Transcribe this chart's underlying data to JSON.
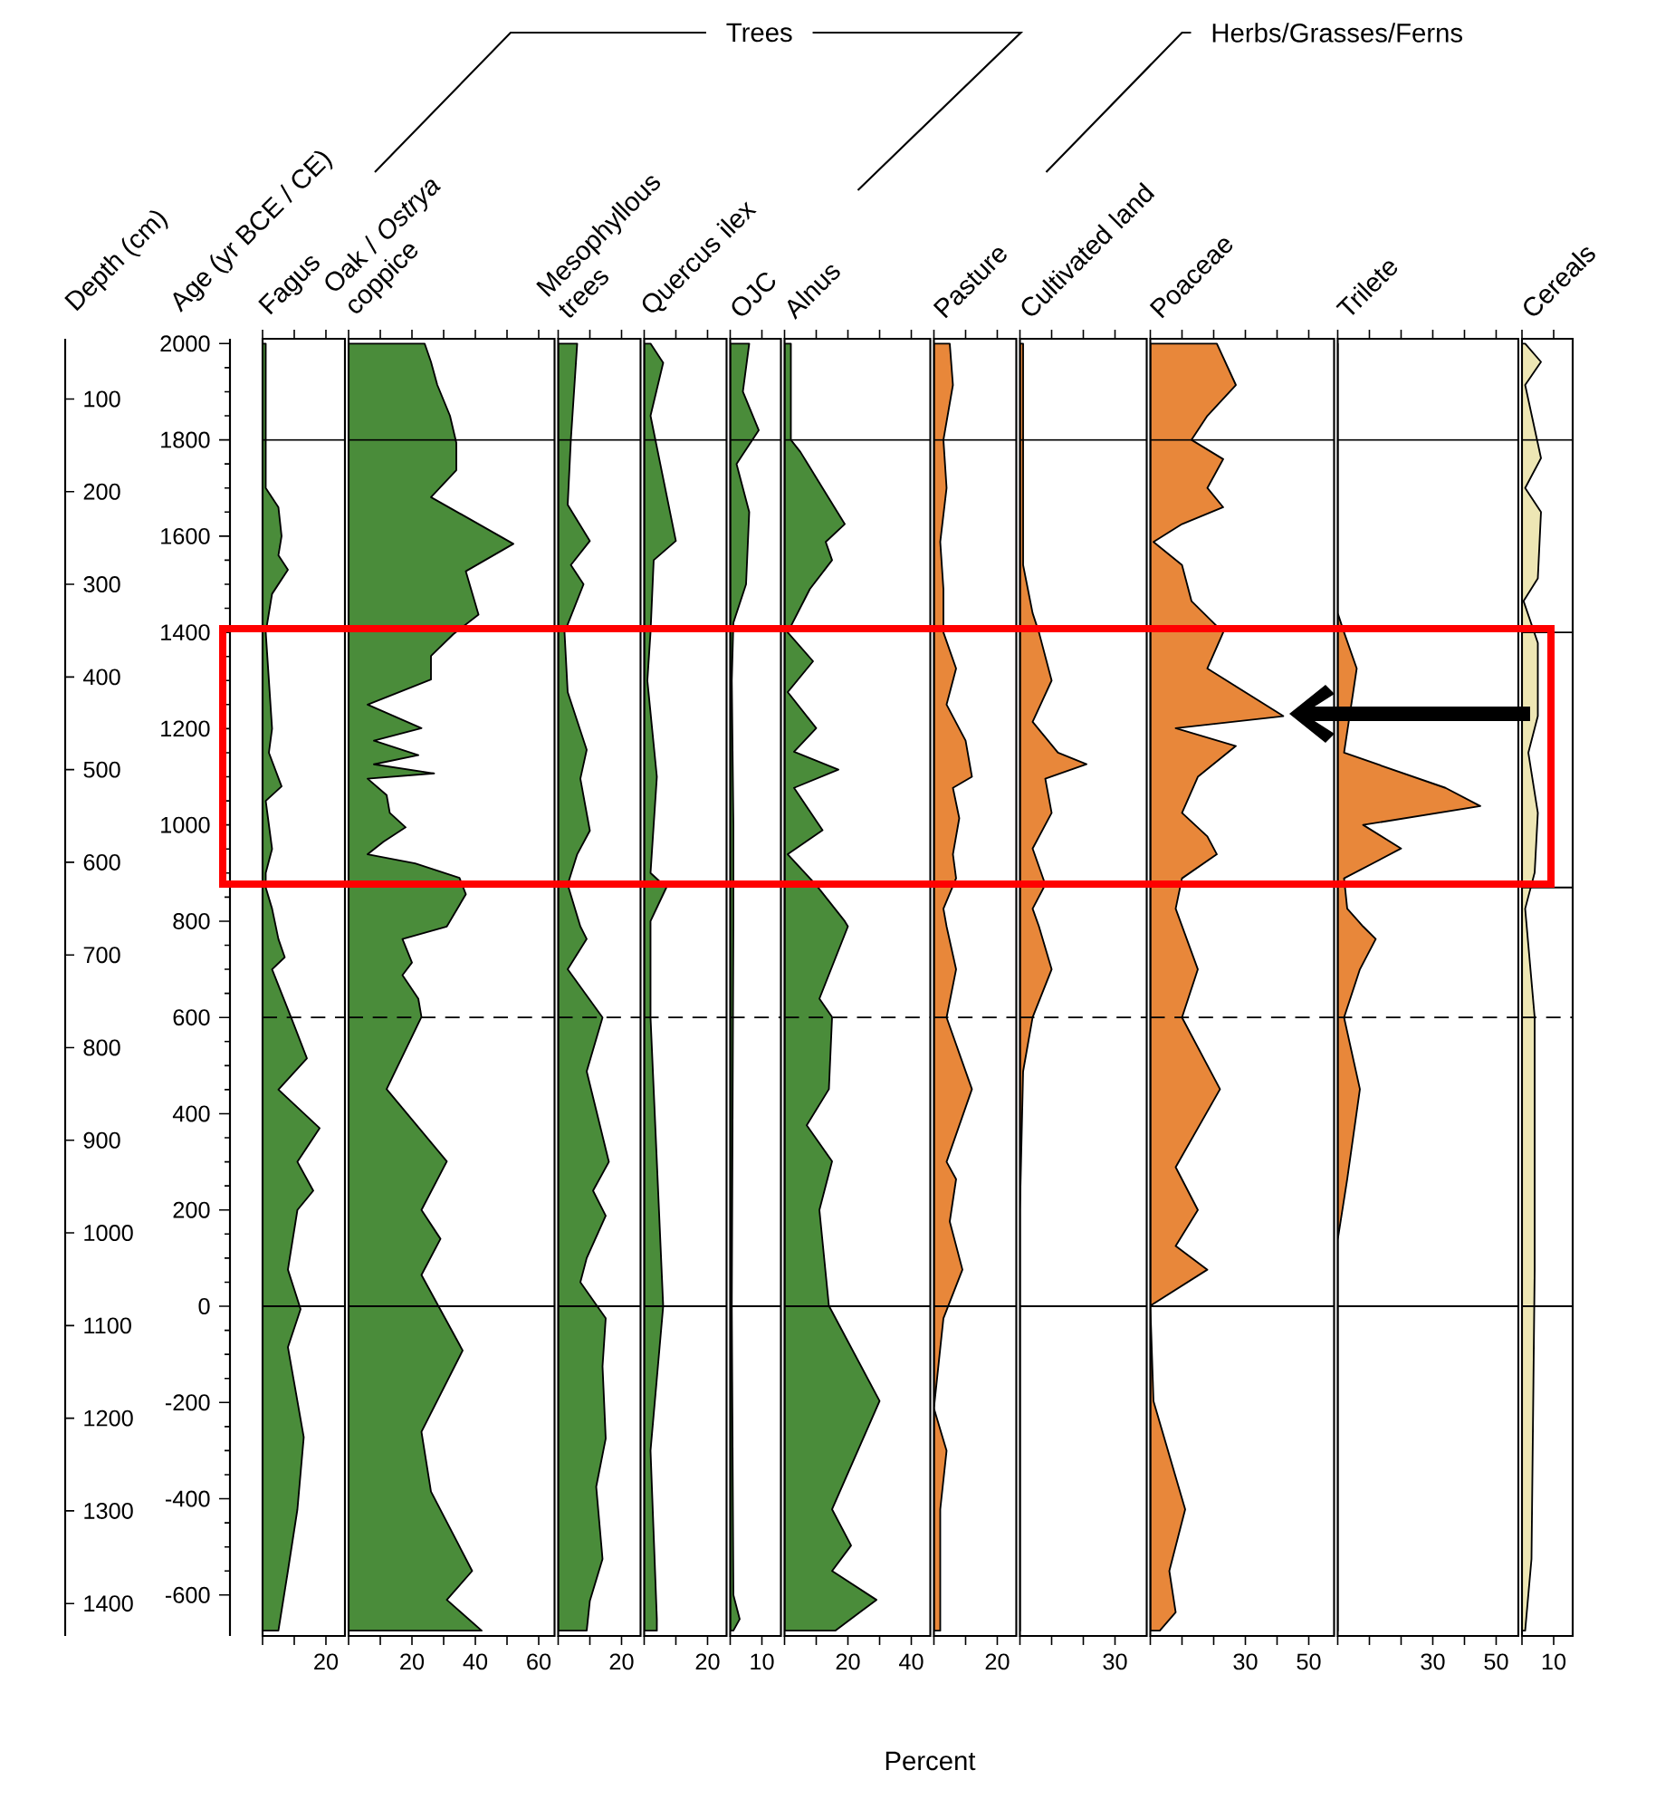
{
  "chart_data": [
    {
      "type": "area",
      "orientation": "horizontal",
      "title": "Fagus",
      "ylabel": "Age (yr BCE / CE)",
      "y2label": "Depth (cm)",
      "annotations": [
        "Trees"
      ],
      "xlim": [
        0,
        26
      ],
      "xticks": [
        {
          "value": 0,
          "label": null
        },
        {
          "value": 10,
          "label": null
        },
        20
      ],
      "ylim": [
        -685,
        2010
      ],
      "yticks": [
        -600,
        -400,
        -200,
        0,
        200,
        400,
        600,
        800,
        1000,
        1200,
        1400,
        1600,
        1800,
        2000
      ],
      "y2lim": [
        1435,
        35
      ],
      "y2ticks": [
        100,
        200,
        300,
        400,
        500,
        600,
        700,
        800,
        900,
        1000,
        1100,
        1200,
        1300,
        1400
      ],
      "ref_lines": [
        {
          "axis": "y",
          "value": 1800
        },
        {
          "axis": "y",
          "value": 600,
          "line_style": "dashed"
        },
        {
          "axis": "y",
          "value": 0
        }
      ],
      "series": [
        {
          "color": "#4a8c3a",
          "x": [
            2000,
            1800,
            1700,
            1660,
            1600,
            1560,
            1530,
            1480,
            1400,
            1300,
            1200,
            1150,
            1080,
            1050,
            1000,
            950,
            900,
            870,
            826,
            763,
            725,
            700,
            600,
            515,
            450,
            370,
            300,
            240,
            200,
            76,
            -6,
            -85,
            -272,
            -422,
            -550,
            -674
          ],
          "values": [
            1,
            1,
            1,
            5,
            6,
            5,
            8,
            3,
            1,
            2,
            3,
            2,
            6,
            1,
            2,
            3,
            1,
            1,
            3,
            5,
            7,
            3,
            9,
            14,
            5,
            18,
            11,
            16,
            11,
            8,
            12,
            8,
            13,
            11,
            8,
            5
          ]
        }
      ]
    },
    {
      "type": "area",
      "orientation": "horizontal",
      "title": "Oak / *Ostrya* coppice",
      "tick_labels": "x",
      "xlim": [
        0,
        65
      ],
      "xticks": [
        {
          "value": 0,
          "label": null
        },
        {
          "value": 10,
          "label": null
        },
        20,
        {
          "value": 30,
          "label": null
        },
        40,
        {
          "value": 50,
          "label": null
        },
        60
      ],
      "ylim": [
        -685,
        2010
      ],
      "ref_lines": [
        {
          "axis": "y",
          "value": 1800
        },
        {
          "axis": "y",
          "value": 600,
          "line_style": "dashed"
        },
        {
          "axis": "y",
          "value": 0
        }
      ],
      "series": [
        {
          "color": "#4a8c3a",
          "x": [
            2000,
            1962,
            1914,
            1850,
            1794,
            1737,
            1681,
            1584,
            1527,
            1437,
            1396,
            1351,
            1302,
            1250,
            1201,
            1175,
            1145,
            1126,
            1107,
            1096,
            1062,
            1025,
            995,
            965,
            939,
            920,
            890,
            856,
            789,
            763,
            714,
            688,
            639,
            601,
            451,
            301,
            200,
            140,
            65,
            -92,
            -261,
            -385,
            -550,
            -610,
            -674
          ],
          "values": [
            24,
            26,
            28,
            32,
            34,
            34,
            26,
            52,
            37,
            41,
            33,
            26,
            26,
            6,
            23,
            8,
            22,
            8,
            27,
            6,
            12,
            13,
            18,
            11,
            6,
            21,
            35,
            37,
            31,
            17,
            20,
            17,
            22,
            23,
            12,
            31,
            23,
            29,
            23,
            36,
            23,
            26,
            39,
            31,
            42
          ]
        }
      ]
    },
    {
      "type": "area",
      "orientation": "horizontal",
      "title": "Mesophyllous trees",
      "tick_labels": "x",
      "xlim": [
        0,
        26
      ],
      "xticks": [
        {
          "value": 0,
          "label": null
        },
        {
          "value": 10,
          "label": null
        },
        20
      ],
      "ylim": [
        -685,
        2010
      ],
      "ref_lines": [
        {
          "axis": "y",
          "value": 1800
        },
        {
          "axis": "y",
          "value": 600,
          "line_style": "dashed"
        },
        {
          "axis": "y",
          "value": 0
        }
      ],
      "series": [
        {
          "color": "#4a8c3a",
          "x": [
            2000,
            1800,
            1665,
            1590,
            1540,
            1500,
            1400,
            1276,
            1156,
            1096,
            988,
            939,
            876,
            789,
            763,
            700,
            600,
            488,
            300,
            240,
            188,
            100,
            50,
            -25,
            -125,
            -275,
            -375,
            -525,
            -612,
            -674
          ],
          "values": [
            6,
            4,
            3,
            10,
            4,
            8,
            2,
            3,
            9,
            7,
            10,
            6,
            3,
            7,
            9,
            3,
            14,
            9,
            16,
            11,
            15,
            9,
            7,
            15,
            14,
            15,
            12,
            14,
            10,
            9
          ]
        }
      ]
    },
    {
      "type": "area",
      "orientation": "horizontal",
      "title": "Quercus ilex",
      "tick_labels": "x",
      "xlim": [
        0,
        26
      ],
      "xticks": [
        {
          "value": 0,
          "label": null
        },
        {
          "value": 10,
          "label": null
        },
        20
      ],
      "ylim": [
        -685,
        2010
      ],
      "ref_lines": [
        {
          "axis": "y",
          "value": 1800
        },
        {
          "axis": "y",
          "value": 600,
          "line_style": "dashed"
        },
        {
          "axis": "y",
          "value": 0
        }
      ],
      "series": [
        {
          "color": "#4a8c3a",
          "x": [
            2000,
            1960,
            1850,
            1590,
            1550,
            1400,
            1300,
            1100,
            900,
            870,
            800,
            600,
            0,
            -300,
            -650,
            -674
          ],
          "values": [
            2,
            6,
            2,
            10,
            3,
            2,
            1,
            4,
            2,
            7,
            2,
            2,
            6,
            2,
            4,
            4
          ]
        }
      ]
    },
    {
      "type": "area",
      "orientation": "horizontal",
      "title": "OJC",
      "tick_labels": "x",
      "xlim": [
        0,
        16
      ],
      "xticks": [
        {
          "value": 0,
          "label": null
        },
        10
      ],
      "ylim": [
        -685,
        2010
      ],
      "ref_lines": [
        {
          "axis": "y",
          "value": 1800
        },
        {
          "axis": "y",
          "value": 600,
          "line_style": "dashed"
        },
        {
          "axis": "y",
          "value": 0
        }
      ],
      "series": [
        {
          "color": "#4a8c3a",
          "x": [
            2000,
            1900,
            1820,
            1750,
            1650,
            1500,
            1420,
            1300,
            1000,
            800,
            0,
            -600,
            -650,
            -674
          ],
          "values": [
            6,
            4,
            9,
            2,
            6,
            5,
            1,
            0.5,
            1,
            1,
            0.5,
            1,
            3,
            1
          ]
        }
      ]
    },
    {
      "type": "area",
      "orientation": "horizontal",
      "title": "Alnus",
      "xlabel": "Percent",
      "tick_labels": "x",
      "xlim": [
        0,
        46
      ],
      "xticks": [
        {
          "value": 0,
          "label": null
        },
        {
          "value": 10,
          "label": null
        },
        20,
        {
          "value": 30,
          "label": null
        },
        40
      ],
      "ylim": [
        -685,
        2010
      ],
      "ref_lines": [
        {
          "axis": "y",
          "value": 1800
        },
        {
          "axis": "y",
          "value": 600,
          "line_style": "dashed"
        },
        {
          "axis": "y",
          "value": 0
        }
      ],
      "series": [
        {
          "color": "#4a8c3a",
          "x": [
            2000,
            1800,
            1775,
            1700,
            1625,
            1588,
            1550,
            1490,
            1400,
            1340,
            1276,
            1201,
            1152,
            1115,
            1077,
            989,
            939,
            875,
            800,
            789,
            639,
            601,
            451,
            376,
            301,
            200,
            1,
            -197,
            -422,
            -497,
            -550,
            -610,
            -674
          ],
          "values": [
            2,
            2,
            5,
            12,
            19,
            13,
            15,
            8,
            1,
            9,
            1,
            10,
            3,
            17,
            3,
            12,
            1,
            10,
            19,
            20,
            11,
            15,
            14,
            7,
            15,
            11,
            14,
            30,
            15,
            21,
            15,
            29,
            16
          ]
        }
      ]
    },
    {
      "type": "area",
      "orientation": "horizontal",
      "title": "Pasture",
      "annotations": [
        "Herbs/Grasses/Ferns"
      ],
      "tick_labels": "x",
      "xlim": [
        0,
        26
      ],
      "xticks": [
        {
          "value": 0,
          "label": null
        },
        {
          "value": 10,
          "label": null
        },
        20
      ],
      "ylim": [
        -685,
        2010
      ],
      "ref_lines": [
        {
          "axis": "y",
          "value": 1800
        },
        {
          "axis": "y",
          "value": 600,
          "line_style": "dashed"
        },
        {
          "axis": "y",
          "value": 0
        }
      ],
      "series": [
        {
          "color": "#e8873a",
          "x": [
            2000,
            1914,
            1800,
            1700,
            1588,
            1490,
            1400,
            1325,
            1250,
            1175,
            1100,
            1077,
            1014,
            939,
            889,
            826,
            789,
            700,
            600,
            451,
            300,
            264,
            176,
            76,
            -25,
            -212,
            -300,
            -422,
            -674
          ],
          "values": [
            5,
            6,
            3,
            4,
            2,
            3,
            3,
            7,
            4,
            10,
            12,
            6,
            8,
            6,
            7,
            3,
            4,
            7,
            4,
            12,
            4,
            7,
            5,
            9,
            3,
            0,
            4,
            2,
            2
          ]
        }
      ]
    },
    {
      "type": "area",
      "orientation": "horizontal",
      "title": "Cultivated land",
      "tick_labels": "x",
      "xlim": [
        0,
        40
      ],
      "xticks": [
        {
          "value": 0,
          "label": null
        },
        {
          "value": 10,
          "label": null
        },
        {
          "value": 20,
          "label": null
        },
        30
      ],
      "ylim": [
        -685,
        2010
      ],
      "ref_lines": [
        {
          "axis": "y",
          "value": 1800
        },
        {
          "axis": "y",
          "value": 600,
          "line_style": "dashed"
        },
        {
          "axis": "y",
          "value": 0
        }
      ],
      "series": [
        {
          "color": "#e8873a",
          "x": [
            2000,
            1540,
            1440,
            1400,
            1300,
            1214,
            1150,
            1126,
            1096,
            1025,
            951,
            876,
            826,
            789,
            700,
            600,
            488,
            200,
            -674
          ],
          "values": [
            1,
            1,
            4,
            6,
            10,
            4,
            12,
            21,
            8,
            10,
            4,
            8,
            4,
            6,
            10,
            4,
            1,
            0,
            0
          ]
        }
      ]
    },
    {
      "type": "area",
      "orientation": "horizontal",
      "title": "Poaceae",
      "tick_labels": "x",
      "xlim": [
        0,
        58
      ],
      "xticks": [
        {
          "value": 0,
          "label": null
        },
        {
          "value": 10,
          "label": null
        },
        {
          "value": 20,
          "label": null
        },
        30,
        {
          "value": 40,
          "label": null
        },
        50
      ],
      "ylim": [
        -685,
        2010
      ],
      "ref_lines": [
        {
          "axis": "y",
          "value": 1800
        },
        {
          "axis": "y",
          "value": 600,
          "line_style": "dashed"
        },
        {
          "axis": "y",
          "value": 0
        }
      ],
      "series": [
        {
          "color": "#e8873a",
          "x": [
            2000,
            1914,
            1850,
            1800,
            1760,
            1700,
            1660,
            1625,
            1588,
            1540,
            1465,
            1400,
            1325,
            1226,
            1201,
            1164,
            1100,
            1025,
            976,
            939,
            889,
            826,
            700,
            600,
            451,
            289,
            200,
            125,
            76,
            1,
            -197,
            -422,
            -550,
            -636,
            -674
          ],
          "values": [
            21,
            27,
            18,
            13,
            23,
            18,
            23,
            10,
            1,
            10,
            13,
            23,
            18,
            42,
            8,
            27,
            15,
            10,
            18,
            21,
            10,
            8,
            15,
            10,
            22,
            8,
            15,
            8,
            18,
            0,
            1,
            11,
            6,
            8,
            3
          ]
        }
      ]
    },
    {
      "type": "area",
      "orientation": "horizontal",
      "title": "Trilete",
      "tick_labels": "x",
      "xlim": [
        0,
        57
      ],
      "xticks": [
        {
          "value": 0,
          "label": null
        },
        {
          "value": 10,
          "label": null
        },
        {
          "value": 20,
          "label": null
        },
        30,
        {
          "value": 40,
          "label": null
        },
        50
      ],
      "ylim": [
        -685,
        2010
      ],
      "ref_lines": [
        {
          "axis": "y",
          "value": 1800
        },
        {
          "axis": "y",
          "value": 600,
          "line_style": "dashed"
        },
        {
          "axis": "y",
          "value": 0
        }
      ],
      "series": [
        {
          "color": "#e8873a",
          "x": [
            2000,
            1440,
            1400,
            1325,
            1226,
            1150,
            1077,
            1039,
            1000,
            951,
            889,
            826,
            789,
            763,
            700,
            600,
            451,
            264,
            138,
            -674
          ],
          "values": [
            0,
            0,
            2,
            6,
            null,
            2,
            34,
            45,
            8,
            20,
            2,
            3,
            8,
            12,
            7,
            2,
            7,
            3,
            0,
            0
          ]
        }
      ]
    },
    {
      "type": "area",
      "orientation": "horizontal",
      "title": "Cereals",
      "tick_labels": "x",
      "xlim": [
        0,
        16
      ],
      "xticks": [
        {
          "value": 0,
          "label": null
        },
        10
      ],
      "ylim": [
        -685,
        2010
      ],
      "ref_lines": [
        {
          "axis": "y",
          "value": 1800
        },
        {
          "axis": "y",
          "value": 1400
        },
        {
          "axis": "y",
          "value": 870
        },
        {
          "axis": "y",
          "value": 600,
          "line_style": "dashed"
        },
        {
          "axis": "y",
          "value": 0
        }
      ],
      "series": [
        {
          "color": "#ede6b4",
          "x": [
            2000,
            1962,
            1914,
            1762,
            1700,
            1650,
            1512,
            1465,
            1378,
            1226,
            1150,
            1025,
            901,
            826,
            600,
            76,
            -525,
            -674
          ],
          "values": [
            1,
            6,
            1,
            6,
            1,
            6,
            5,
            0.5,
            5,
            5,
            2,
            5,
            4,
            1,
            4,
            4,
            3,
            1
          ]
        }
      ]
    }
  ]
}
